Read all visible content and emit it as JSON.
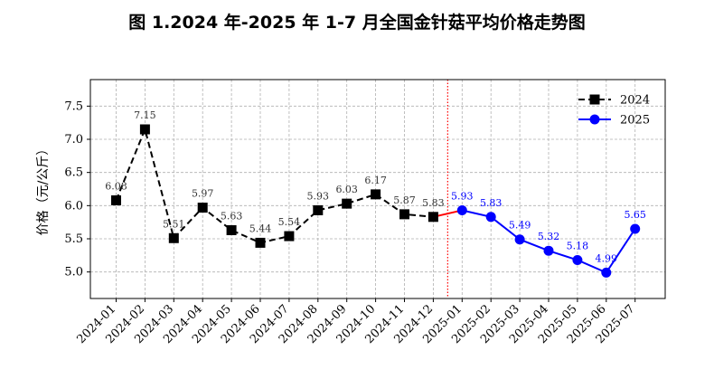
{
  "figure_title": "图 1.2024 年-2025 年 1-7 月全国金针菇平均价格走势图",
  "chart_data": {
    "type": "line",
    "title": "图 1.2024 年-2025 年 1-7 月全国金针菇平均价格走势图",
    "xlabel": "",
    "ylabel": "价格（元/公斤）",
    "ylim": [
      4.6,
      7.9
    ],
    "yticks": [
      5.0,
      5.5,
      6.0,
      6.5,
      7.0,
      7.5
    ],
    "ytick_labels": [
      "5.0",
      "5.5",
      "6.0",
      "6.5",
      "7.0",
      "7.5"
    ],
    "categories": [
      "2024-01",
      "2024-02",
      "2024-03",
      "2024-04",
      "2024-05",
      "2024-06",
      "2024-07",
      "2024-08",
      "2024-09",
      "2024-10",
      "2024-11",
      "2024-12",
      "2025-01",
      "2025-02",
      "2025-03",
      "2025-04",
      "2025-05",
      "2025-06",
      "2025-07"
    ],
    "grid": true,
    "legend_position": "top-right",
    "series": [
      {
        "name": "2024",
        "color": "#000000",
        "line_style": "dashed",
        "marker": "square",
        "x": [
          "2024-01",
          "2024-02",
          "2024-03",
          "2024-04",
          "2024-05",
          "2024-06",
          "2024-07",
          "2024-08",
          "2024-09",
          "2024-10",
          "2024-11",
          "2024-12"
        ],
        "values": [
          6.08,
          7.15,
          5.51,
          5.97,
          5.63,
          5.44,
          5.54,
          5.93,
          6.03,
          6.17,
          5.87,
          5.83
        ],
        "labels": [
          "6.08",
          "7.15",
          "5.51",
          "5.97",
          "5.63",
          "5.44",
          "5.54",
          "5.93",
          "6.03",
          "6.17",
          "5.87",
          "5.83"
        ]
      },
      {
        "name": "2025",
        "color": "#0000ff",
        "line_style": "solid",
        "marker": "circle",
        "x": [
          "2025-01",
          "2025-02",
          "2025-03",
          "2025-04",
          "2025-05",
          "2025-06",
          "2025-07"
        ],
        "values": [
          5.93,
          5.83,
          5.49,
          5.32,
          5.18,
          4.99,
          5.65
        ],
        "labels": [
          "5.93",
          "5.83",
          "5.49",
          "5.32",
          "5.18",
          "4.99",
          "5.65"
        ]
      }
    ],
    "connector": {
      "from": "2024-12",
      "to": "2025-01",
      "color": "#ff0000"
    },
    "divider": {
      "at": "between 2024-12 and 2025-01",
      "color": "#ff0000",
      "style": "dotted"
    }
  }
}
